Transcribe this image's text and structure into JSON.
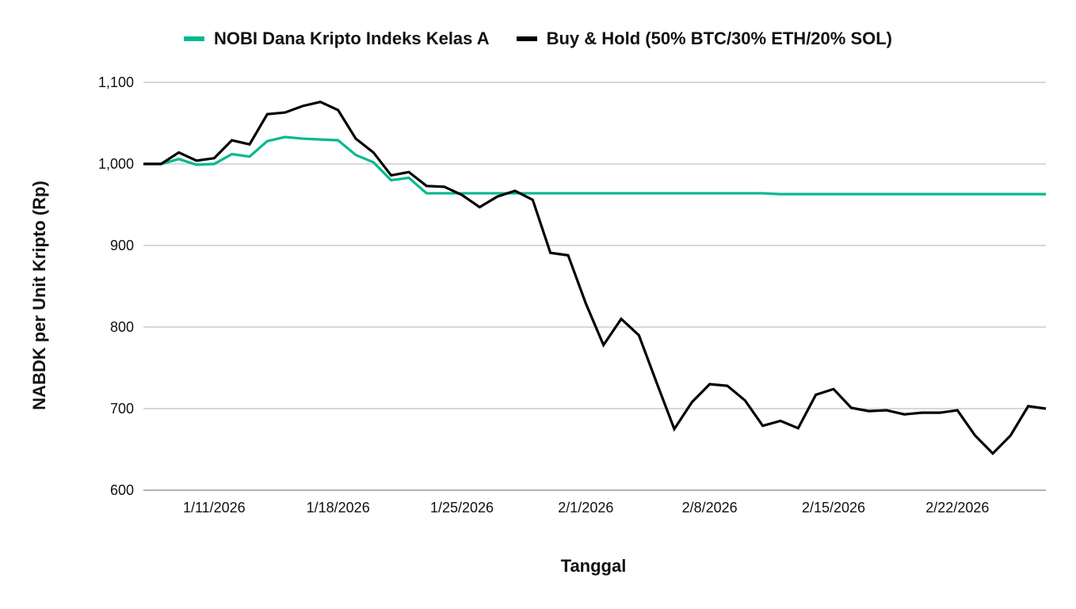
{
  "chart_data": {
    "type": "line",
    "title": "",
    "xlabel": "Tanggal",
    "ylabel": "NABDK per Unit Kripto (Rp)",
    "ylim": [
      600,
      1100
    ],
    "yticks": [
      "600",
      "700",
      "800",
      "900",
      "1,000",
      "1,100"
    ],
    "xticks": [
      "1/11/2026",
      "1/18/2026",
      "1/25/2026",
      "2/1/2026",
      "2/8/2026",
      "2/15/2026",
      "2/22/2026"
    ],
    "grid": true,
    "legend_position": "top",
    "x": [
      "1/7/2026",
      "1/8/2026",
      "1/9/2026",
      "1/10/2026",
      "1/11/2026",
      "1/12/2026",
      "1/13/2026",
      "1/14/2026",
      "1/15/2026",
      "1/16/2026",
      "1/17/2026",
      "1/18/2026",
      "1/19/2026",
      "1/20/2026",
      "1/21/2026",
      "1/22/2026",
      "1/23/2026",
      "1/24/2026",
      "1/25/2026",
      "1/26/2026",
      "1/27/2026",
      "1/28/2026",
      "1/29/2026",
      "1/30/2026",
      "1/31/2026",
      "2/1/2026",
      "2/2/2026",
      "2/3/2026",
      "2/4/2026",
      "2/5/2026",
      "2/6/2026",
      "2/7/2026",
      "2/8/2026",
      "2/9/2026",
      "2/10/2026",
      "2/11/2026",
      "2/12/2026",
      "2/13/2026",
      "2/14/2026",
      "2/15/2026",
      "2/16/2026",
      "2/17/2026",
      "2/18/2026",
      "2/19/2026",
      "2/20/2026",
      "2/21/2026",
      "2/22/2026",
      "2/23/2026",
      "2/24/2026",
      "2/25/2026",
      "2/26/2026",
      "2/27/2026"
    ],
    "series": [
      {
        "name": "NOBI Dana Kripto Indeks Kelas A",
        "color": "#00b98f",
        "values": [
          1000,
          1000,
          1006,
          999,
          1000,
          1012,
          1009,
          1028,
          1033,
          1031,
          1030,
          1029,
          1011,
          1002,
          980,
          983,
          964,
          964,
          964,
          964,
          964,
          964,
          964,
          964,
          964,
          964,
          964,
          964,
          964,
          964,
          964,
          964,
          964,
          964,
          964,
          964,
          963,
          963,
          963,
          963,
          963,
          963,
          963,
          963,
          963,
          963,
          963,
          963,
          963,
          963,
          963,
          963
        ]
      },
      {
        "name": "Buy & Hold (50% BTC/30% ETH/20% SOL)",
        "color": "#000000",
        "values": [
          1000,
          1000,
          1014,
          1004,
          1007,
          1029,
          1024,
          1061,
          1063,
          1071,
          1076,
          1066,
          1031,
          1014,
          986,
          990,
          973,
          972,
          962,
          947,
          960,
          967,
          956,
          891,
          888,
          829,
          778,
          810,
          790,
          732,
          675,
          708,
          730,
          728,
          710,
          679,
          685,
          676,
          717,
          724,
          701,
          697,
          698,
          693,
          695,
          695,
          698,
          667,
          645,
          667,
          703,
          700
        ]
      }
    ]
  }
}
